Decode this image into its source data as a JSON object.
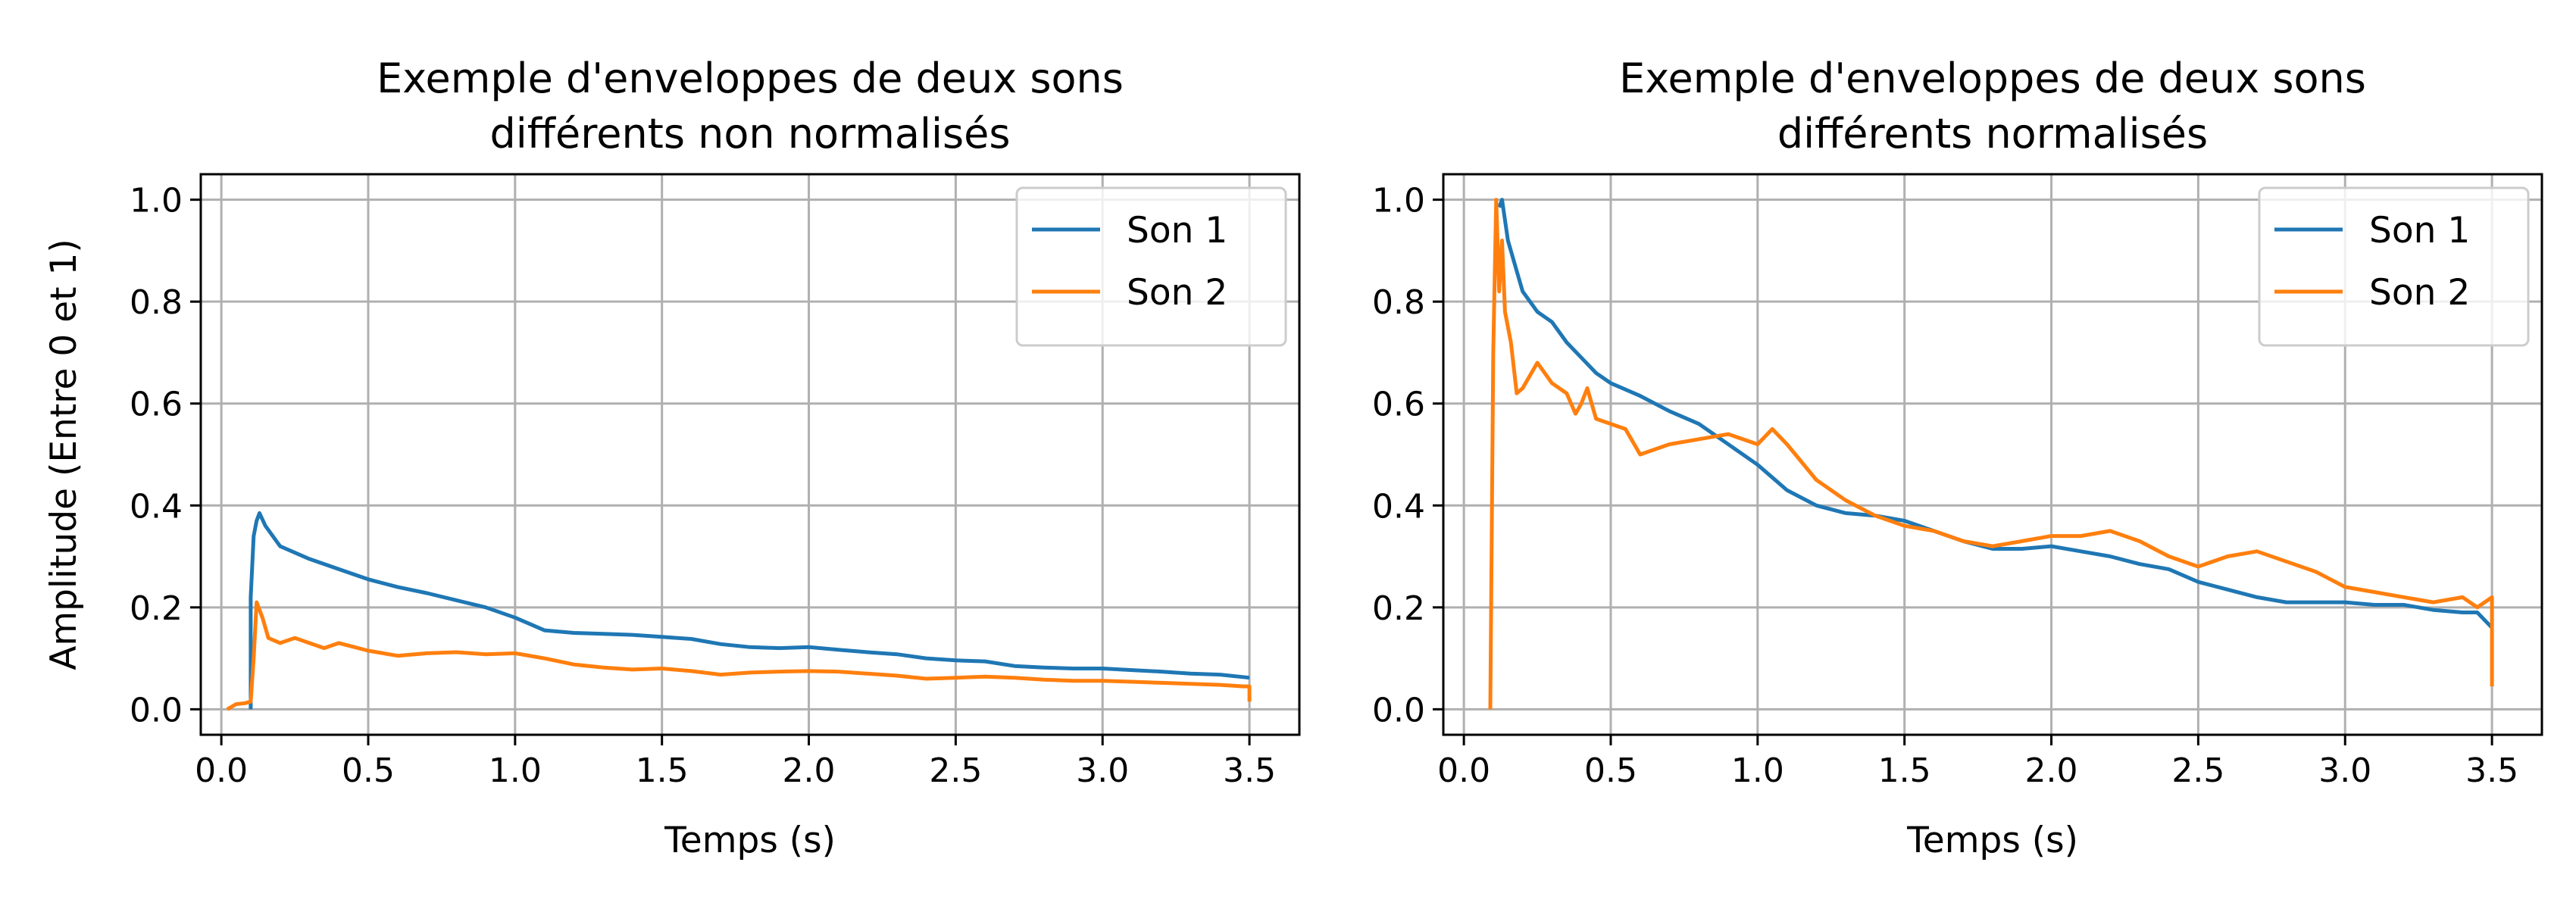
{
  "chart_data": [
    {
      "type": "line",
      "title": "Exemple d'enveloppes de deux sons",
      "subtitle": "différents non normalisés",
      "xlabel": "Temps (s)",
      "ylabel": "Amplitude (Entre 0 et 1)",
      "xlim": [
        -0.07,
        3.67
      ],
      "ylim": [
        -0.05,
        1.05
      ],
      "xticks": [
        "0.0",
        "0.5",
        "1.0",
        "1.5",
        "2.0",
        "2.5",
        "3.0",
        "3.5"
      ],
      "yticks": [
        "0.0",
        "0.2",
        "0.4",
        "0.6",
        "0.8",
        "1.0"
      ],
      "grid": true,
      "legend_position": "top-right",
      "series": [
        {
          "name": "Son 1",
          "color": "#1f77b4",
          "x": [
            0.1,
            0.1,
            0.11,
            0.12,
            0.13,
            0.15,
            0.2,
            0.3,
            0.4,
            0.5,
            0.6,
            0.7,
            0.8,
            0.9,
            1.0,
            1.1,
            1.2,
            1.3,
            1.4,
            1.5,
            1.6,
            1.7,
            1.8,
            1.9,
            2.0,
            2.1,
            2.2,
            2.3,
            2.4,
            2.5,
            2.6,
            2.7,
            2.8,
            2.9,
            3.0,
            3.1,
            3.2,
            3.3,
            3.4,
            3.5
          ],
          "y": [
            0.0,
            0.22,
            0.34,
            0.37,
            0.385,
            0.36,
            0.32,
            0.295,
            0.275,
            0.255,
            0.24,
            0.228,
            0.214,
            0.2,
            0.18,
            0.155,
            0.15,
            0.148,
            0.146,
            0.142,
            0.138,
            0.128,
            0.122,
            0.12,
            0.122,
            0.117,
            0.112,
            0.108,
            0.1,
            0.096,
            0.094,
            0.085,
            0.082,
            0.08,
            0.08,
            0.077,
            0.074,
            0.07,
            0.068,
            0.062
          ]
        },
        {
          "name": "Son 2",
          "color": "#ff7f0e",
          "x": [
            0.02,
            0.05,
            0.08,
            0.1,
            0.11,
            0.12,
            0.14,
            0.16,
            0.2,
            0.25,
            0.3,
            0.35,
            0.4,
            0.5,
            0.6,
            0.7,
            0.8,
            0.9,
            1.0,
            1.1,
            1.2,
            1.3,
            1.4,
            1.5,
            1.6,
            1.7,
            1.8,
            1.9,
            2.0,
            2.1,
            2.2,
            2.3,
            2.4,
            2.5,
            2.6,
            2.7,
            2.8,
            2.9,
            3.0,
            3.1,
            3.2,
            3.3,
            3.4,
            3.48,
            3.5,
            3.5
          ],
          "y": [
            0.0,
            0.01,
            0.012,
            0.015,
            0.1,
            0.21,
            0.18,
            0.14,
            0.13,
            0.14,
            0.13,
            0.12,
            0.13,
            0.115,
            0.105,
            0.11,
            0.112,
            0.108,
            0.11,
            0.1,
            0.088,
            0.082,
            0.078,
            0.08,
            0.075,
            0.068,
            0.072,
            0.074,
            0.075,
            0.074,
            0.07,
            0.066,
            0.06,
            0.062,
            0.064,
            0.062,
            0.058,
            0.056,
            0.056,
            0.054,
            0.052,
            0.05,
            0.048,
            0.045,
            0.045,
            0.015
          ]
        }
      ]
    },
    {
      "type": "line",
      "title": "Exemple d'enveloppes de deux sons",
      "subtitle": "différents normalisés",
      "xlabel": "Temps (s)",
      "ylabel": "",
      "xlim": [
        -0.07,
        3.67
      ],
      "ylim": [
        -0.05,
        1.05
      ],
      "xticks": [
        "0.0",
        "0.5",
        "1.0",
        "1.5",
        "2.0",
        "2.5",
        "3.0",
        "3.5"
      ],
      "yticks": [
        "0.0",
        "0.2",
        "0.4",
        "0.6",
        "0.8",
        "1.0"
      ],
      "grid": true,
      "legend_position": "top-right",
      "series": [
        {
          "name": "Son 1",
          "color": "#1f77b4",
          "x": [
            0.12,
            0.13,
            0.15,
            0.18,
            0.2,
            0.25,
            0.3,
            0.35,
            0.4,
            0.45,
            0.5,
            0.6,
            0.7,
            0.8,
            0.9,
            1.0,
            1.05,
            1.1,
            1.2,
            1.3,
            1.4,
            1.5,
            1.6,
            1.7,
            1.8,
            1.9,
            2.0,
            2.1,
            2.2,
            2.3,
            2.4,
            2.5,
            2.6,
            2.7,
            2.8,
            2.9,
            3.0,
            3.1,
            3.2,
            3.3,
            3.4,
            3.45,
            3.5
          ],
          "y": [
            0.985,
            1.0,
            0.92,
            0.86,
            0.82,
            0.78,
            0.76,
            0.72,
            0.69,
            0.66,
            0.64,
            0.615,
            0.585,
            0.56,
            0.52,
            0.48,
            0.455,
            0.43,
            0.4,
            0.385,
            0.38,
            0.37,
            0.35,
            0.33,
            0.315,
            0.315,
            0.32,
            0.31,
            0.3,
            0.285,
            0.275,
            0.25,
            0.235,
            0.22,
            0.21,
            0.21,
            0.21,
            0.205,
            0.205,
            0.195,
            0.19,
            0.19,
            0.16
          ]
        },
        {
          "name": "Son 2",
          "color": "#ff7f0e",
          "x": [
            0.09,
            0.1,
            0.11,
            0.12,
            0.13,
            0.14,
            0.16,
            0.18,
            0.2,
            0.25,
            0.3,
            0.35,
            0.38,
            0.4,
            0.42,
            0.45,
            0.5,
            0.55,
            0.6,
            0.7,
            0.8,
            0.9,
            1.0,
            1.05,
            1.1,
            1.2,
            1.3,
            1.4,
            1.5,
            1.6,
            1.7,
            1.8,
            1.9,
            2.0,
            2.1,
            2.2,
            2.3,
            2.4,
            2.5,
            2.6,
            2.7,
            2.8,
            2.9,
            3.0,
            3.1,
            3.2,
            3.3,
            3.4,
            3.45,
            3.5,
            3.5
          ],
          "y": [
            0.0,
            0.7,
            1.0,
            0.82,
            0.92,
            0.78,
            0.72,
            0.62,
            0.63,
            0.68,
            0.64,
            0.62,
            0.58,
            0.6,
            0.63,
            0.57,
            0.56,
            0.55,
            0.5,
            0.52,
            0.53,
            0.54,
            0.52,
            0.55,
            0.52,
            0.45,
            0.41,
            0.38,
            0.36,
            0.35,
            0.33,
            0.32,
            0.33,
            0.34,
            0.34,
            0.35,
            0.33,
            0.3,
            0.28,
            0.3,
            0.31,
            0.29,
            0.27,
            0.24,
            0.23,
            0.22,
            0.21,
            0.22,
            0.2,
            0.22,
            0.045
          ]
        }
      ]
    }
  ]
}
